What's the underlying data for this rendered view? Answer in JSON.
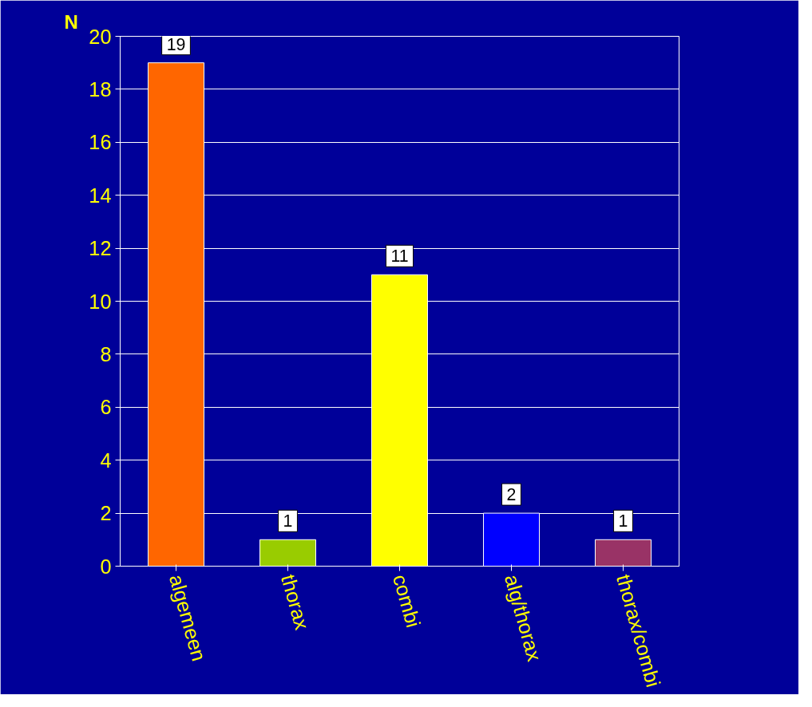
{
  "chart_data": {
    "type": "bar",
    "ylabel": "N",
    "categories": [
      "algemeen",
      "thorax",
      "combi",
      "alg/thorax",
      "thorax/combi"
    ],
    "values": [
      19,
      1,
      11,
      2,
      1
    ],
    "colors": [
      "#ff6600",
      "#99cc00",
      "#ffff00",
      "#0000ff",
      "#993366"
    ],
    "ylim": [
      0,
      20
    ],
    "yticks": [
      0,
      2,
      4,
      6,
      8,
      10,
      12,
      14,
      16,
      18,
      20
    ],
    "grid": "y",
    "data_labels": true
  }
}
